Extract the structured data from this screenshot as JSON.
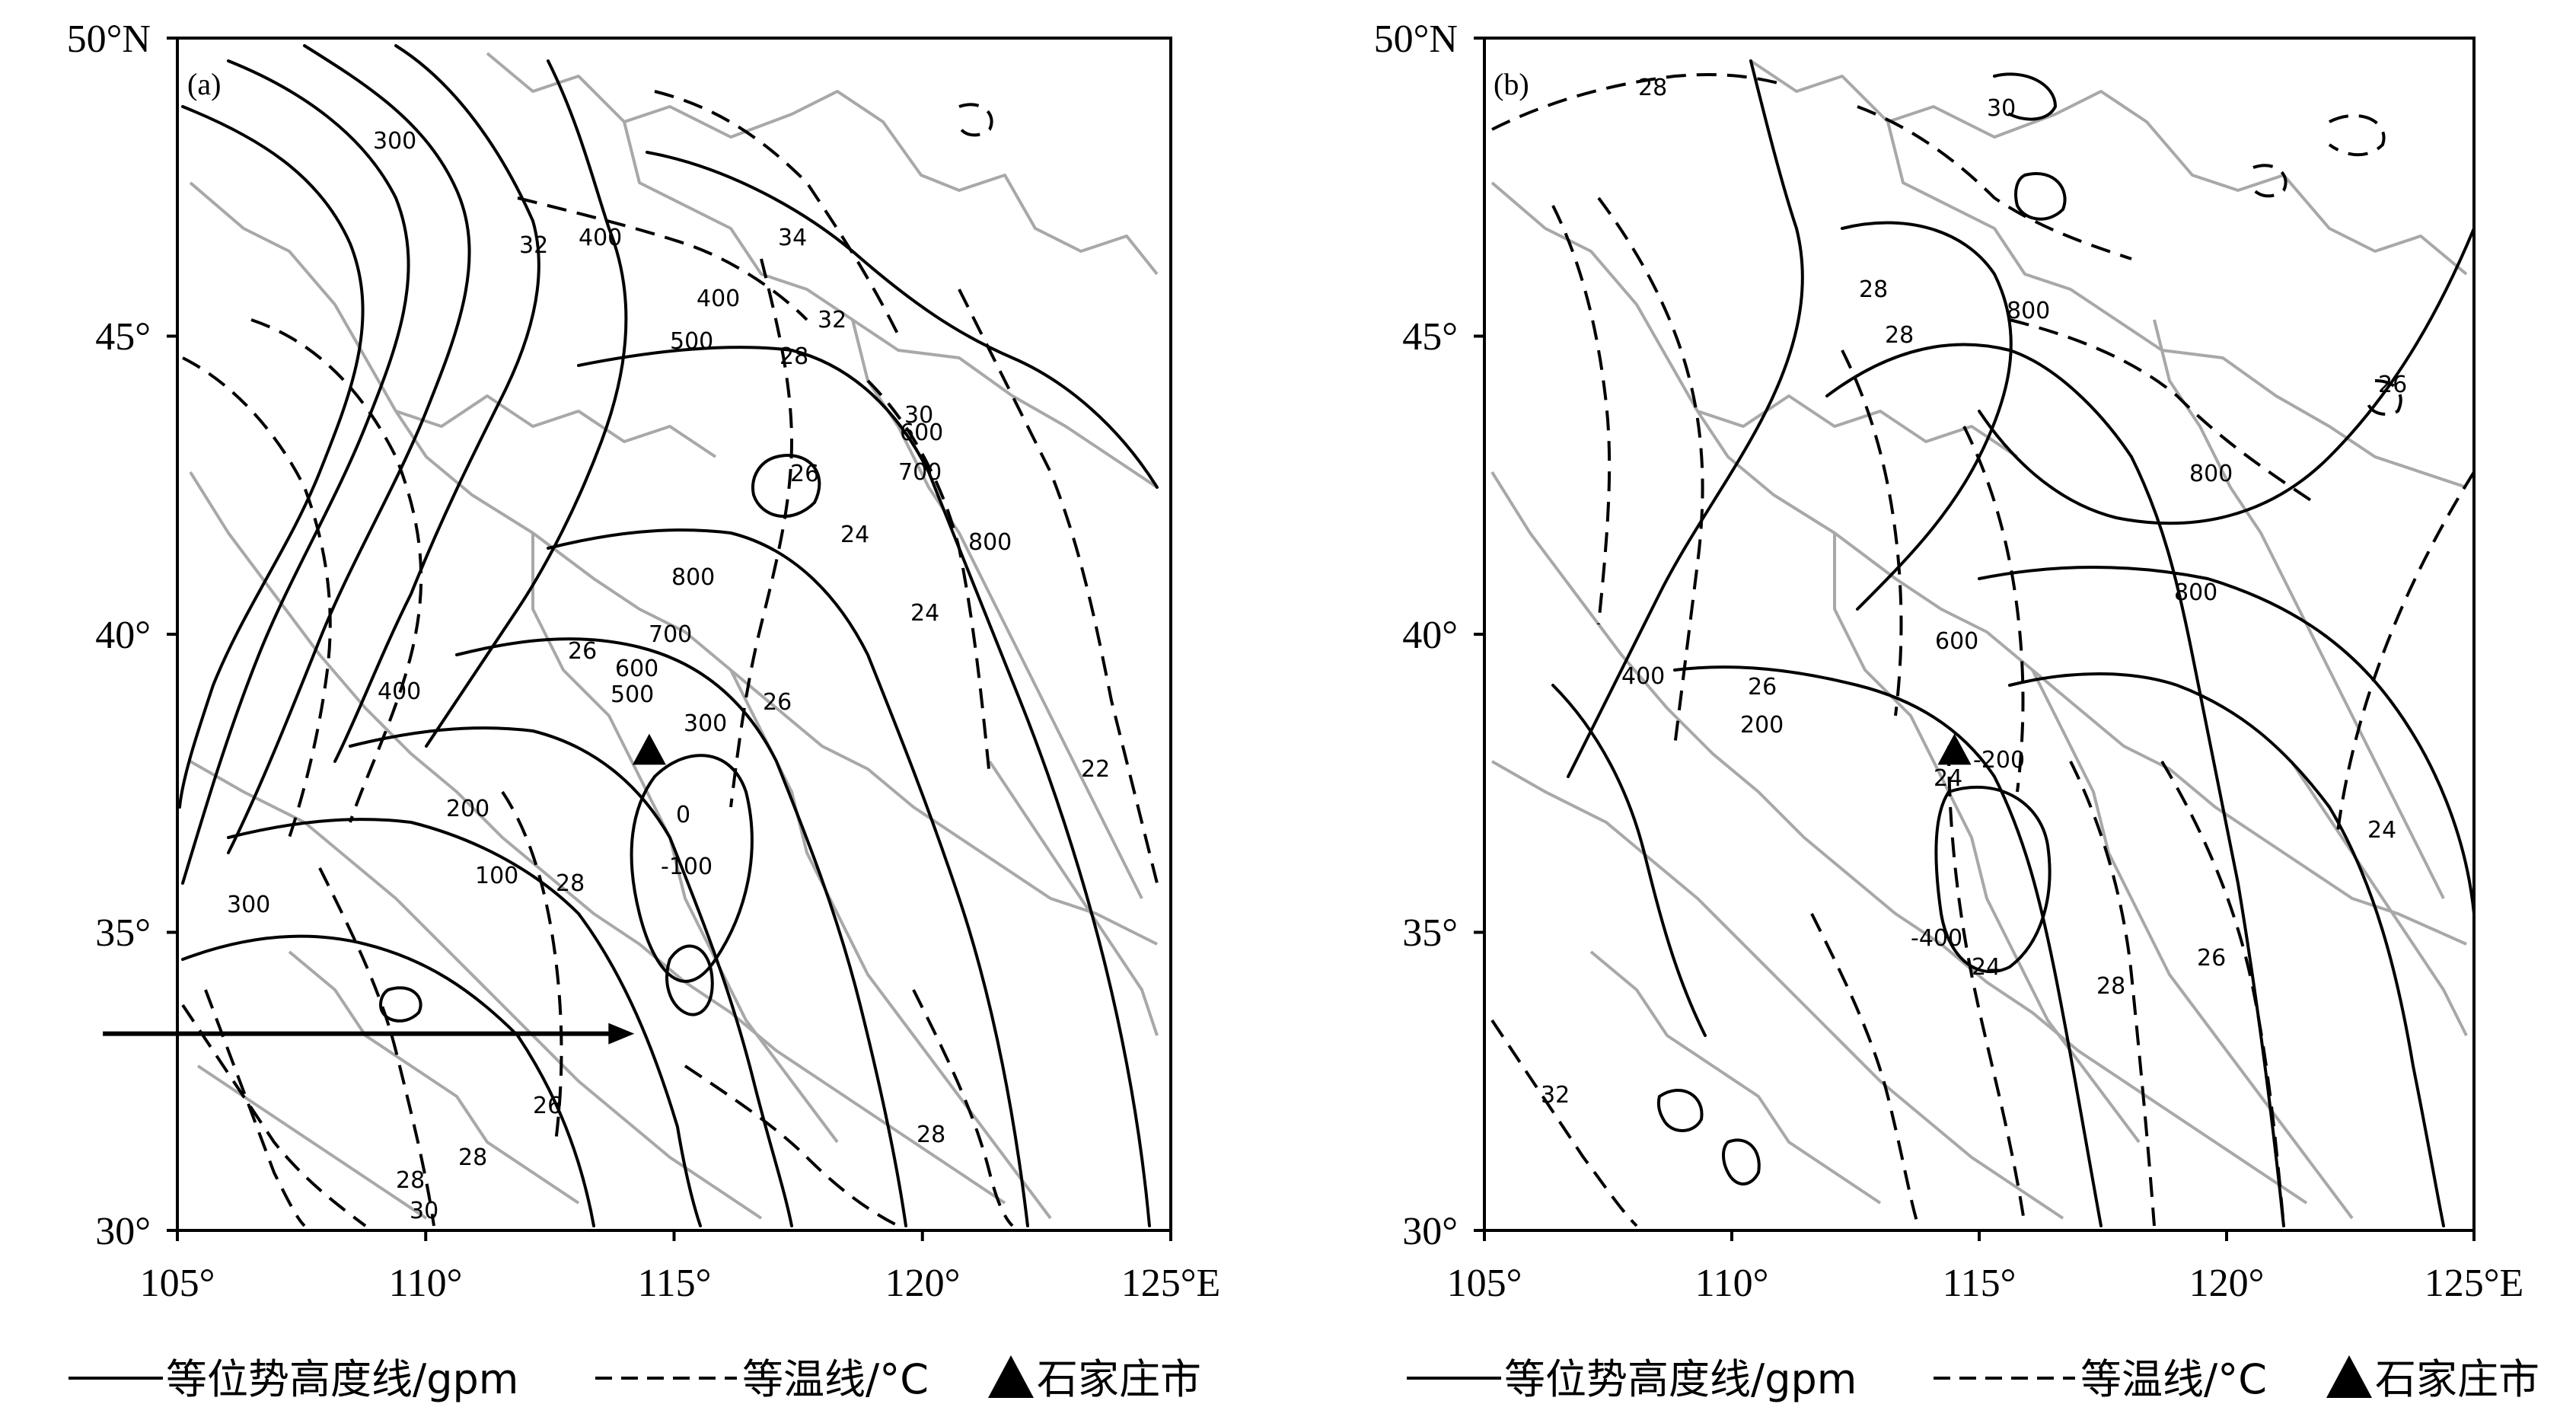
{
  "panels": [
    {
      "tag": "(a)",
      "x_ticks": [
        "105°",
        "110°",
        "115°",
        "120°",
        "125°E"
      ],
      "y_ticks": [
        "50°N",
        "45°",
        "40°",
        "35°",
        "30°"
      ],
      "geopotential_labels": [
        "300",
        "400",
        "400",
        "500",
        "600",
        "700",
        "800",
        "800",
        "700",
        "600",
        "500",
        "400",
        "300",
        "200",
        "100",
        "0",
        "-100",
        "300"
      ],
      "temperature_labels": [
        "32",
        "34",
        "32",
        "30",
        "28",
        "26",
        "24",
        "24",
        "26",
        "26",
        "28",
        "22",
        "28",
        "26",
        "28",
        "28",
        "30"
      ],
      "city_marker": {
        "name": "石家庄市",
        "lon": 114.5,
        "lat": 38.05
      },
      "arrow": {
        "from_lon": 103.5,
        "to_lon": 114.2,
        "lat": 33.3
      }
    },
    {
      "tag": "(b)",
      "x_ticks": [
        "105°",
        "110°",
        "115°",
        "120°",
        "125°E"
      ],
      "y_ticks": [
        "50°N",
        "45°",
        "40°",
        "35°",
        "30°"
      ],
      "geopotential_labels": [
        "800",
        "800",
        "800",
        "600",
        "400",
        "200",
        "-200",
        "-400"
      ],
      "temperature_labels": [
        "28",
        "30",
        "28",
        "28",
        "26",
        "26",
        "24",
        "24",
        "24",
        "26",
        "28",
        "32"
      ],
      "city_marker": {
        "name": "石家庄市",
        "lon": 114.5,
        "lat": 38.05
      }
    }
  ],
  "legend": {
    "geopotential": "等位势高度线/gpm",
    "temperature": "等温线/°C",
    "city": "石家庄市"
  }
}
